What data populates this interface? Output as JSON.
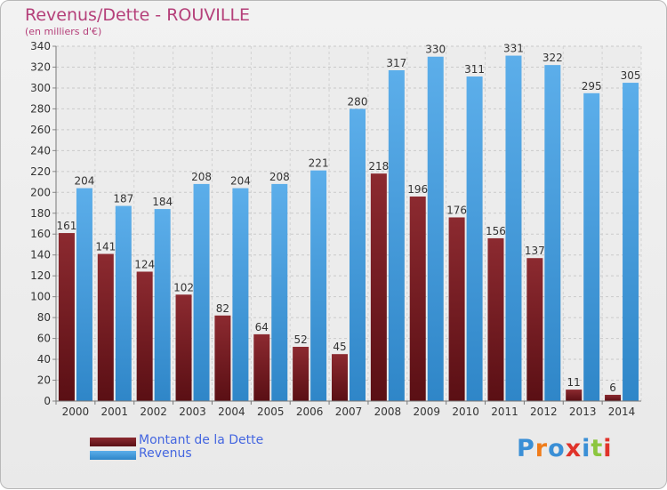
{
  "header": {
    "title": "Revenus/Dette - ROUVILLE",
    "subtitle": "(en milliers d'€)"
  },
  "legend": [
    {
      "label": "Montant de la Dette",
      "color": "#7a1f24"
    },
    {
      "label": "Revenus",
      "color": "#4aa0e2"
    }
  ],
  "logo": {
    "text": "Proxiti"
  },
  "colors": {
    "dette": "#7a1f24",
    "revenus": "#4aa0e2",
    "title": "#b5407a",
    "legend_text": "#4466e0"
  },
  "chart_data": {
    "type": "bar",
    "categories": [
      "2000",
      "2001",
      "2002",
      "2003",
      "2004",
      "2005",
      "2006",
      "2007",
      "2008",
      "2009",
      "2010",
      "2011",
      "2012",
      "2013",
      "2014"
    ],
    "series": [
      {
        "name": "Montant de la Dette",
        "values": [
          161,
          141,
          124,
          102,
          82,
          64,
          52,
          45,
          218,
          196,
          176,
          156,
          137,
          11,
          6
        ]
      },
      {
        "name": "Revenus",
        "values": [
          204,
          187,
          184,
          208,
          204,
          208,
          221,
          280,
          317,
          330,
          311,
          331,
          322,
          295,
          305
        ]
      }
    ],
    "ylim": [
      0,
      340
    ],
    "ytick_step": 20,
    "grid": true,
    "legend_position": "bottom-left"
  }
}
